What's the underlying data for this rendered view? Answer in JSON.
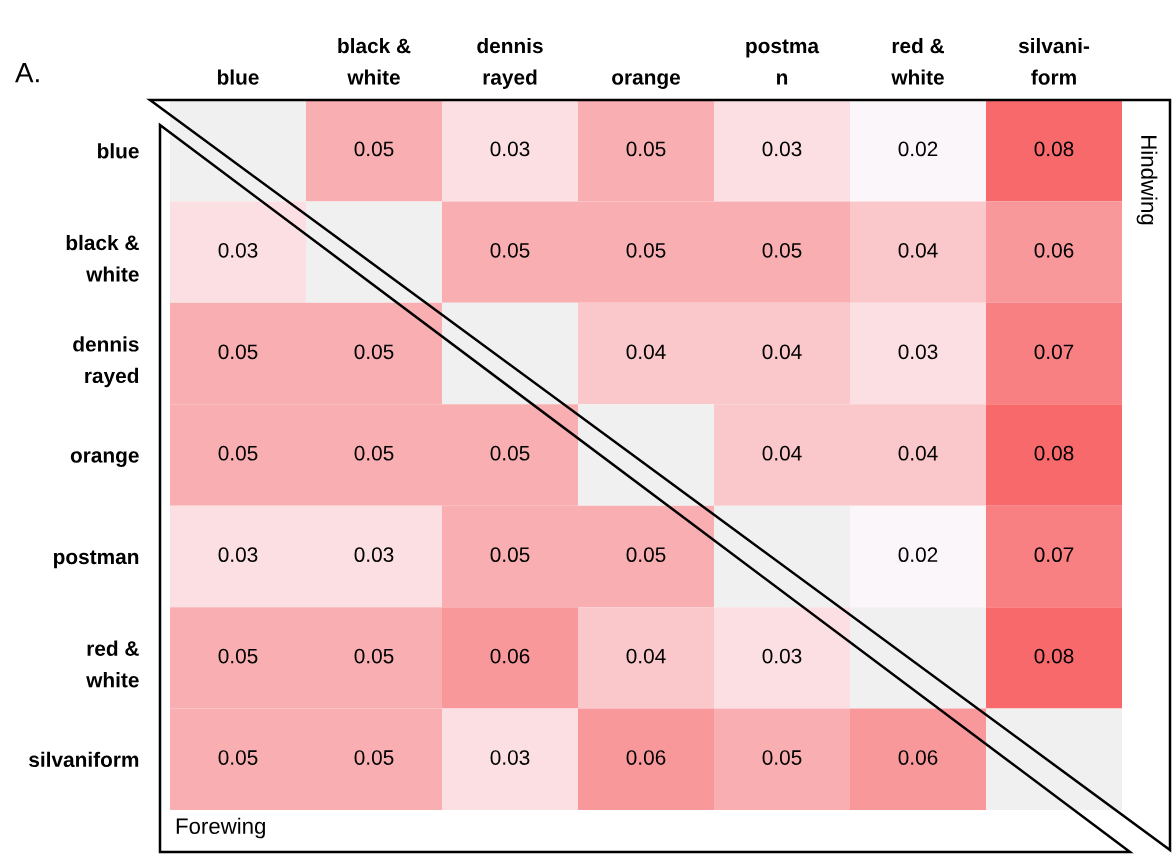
{
  "chart_data": {
    "type": "heatmap",
    "categories": [
      "blue",
      "black &\nwhite",
      "dennis\nrayed",
      "orange",
      "postma\nn",
      "red &\nwhite",
      "silvani-\nform"
    ],
    "y_categories": [
      "blue",
      "black &\nwhite",
      "dennis\nrayed",
      "orange",
      "postman",
      "red &\nwhite",
      "silvaniform"
    ],
    "cells": [
      [
        null,
        0.05,
        0.03,
        0.05,
        0.03,
        0.02,
        0.08
      ],
      [
        0.03,
        null,
        0.05,
        0.05,
        0.05,
        0.04,
        0.06
      ],
      [
        0.05,
        0.05,
        null,
        0.04,
        0.04,
        0.03,
        0.07
      ],
      [
        0.05,
        0.05,
        0.05,
        null,
        0.04,
        0.04,
        0.08
      ],
      [
        0.03,
        0.03,
        0.05,
        0.05,
        null,
        0.02,
        0.07
      ],
      [
        0.05,
        0.05,
        0.06,
        0.04,
        0.03,
        null,
        0.08
      ],
      [
        0.05,
        0.05,
        0.03,
        0.06,
        0.05,
        0.06,
        null
      ]
    ],
    "data_labels": true,
    "annotations": [
      "A.",
      "Hindwing",
      "Forewing"
    ]
  }
}
